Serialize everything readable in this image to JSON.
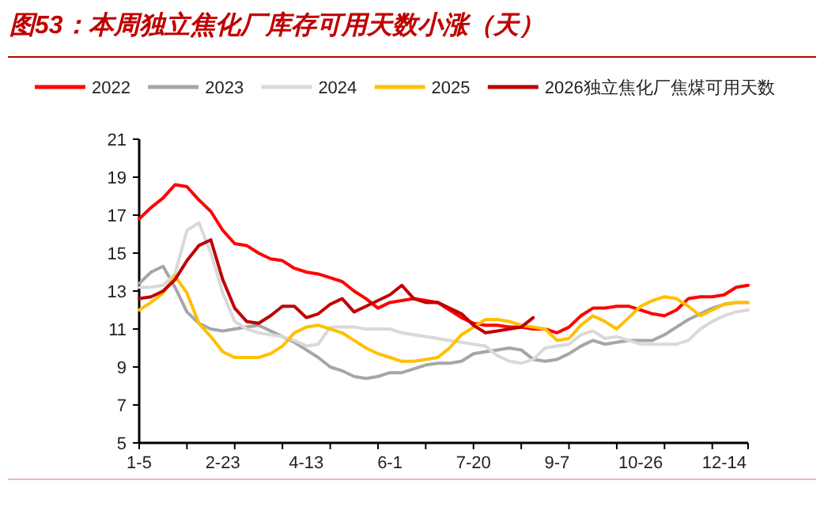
{
  "chart_data": {
    "type": "line",
    "title": "图53：本周独立焦化厂库存可用天数小涨（天）",
    "legend": "top",
    "grid": false,
    "marker": "none",
    "line_style": "solid",
    "categories": [
      "1-5",
      null,
      null,
      null,
      null,
      null,
      null,
      "2-23",
      null,
      null,
      null,
      null,
      null,
      null,
      "4-13",
      null,
      null,
      null,
      null,
      null,
      null,
      "6-1",
      null,
      null,
      null,
      null,
      null,
      null,
      "7-20",
      null,
      null,
      null,
      null,
      null,
      null,
      "9-7",
      null,
      null,
      null,
      null,
      null,
      null,
      "10-26",
      null,
      null,
      null,
      null,
      null,
      null,
      "12-14",
      null,
      null
    ],
    "ylim": [
      5,
      21
    ],
    "yticks": [
      5,
      7,
      9,
      11,
      13,
      15,
      17,
      19,
      21
    ],
    "series": [
      {
        "name": "2022",
        "color": "#ff0000",
        "values": [
          16.8,
          17.4,
          17.9,
          18.6,
          18.5,
          17.8,
          17.2,
          16.2,
          15.5,
          15.4,
          15.0,
          14.7,
          14.6,
          14.2,
          14.0,
          13.9,
          13.7,
          13.5,
          13.0,
          12.6,
          12.1,
          12.4,
          12.5,
          12.6,
          12.5,
          12.4,
          12.0,
          11.6,
          11.3,
          11.2,
          11.2,
          11.1,
          11.1,
          11.0,
          11.0,
          10.8,
          11.1,
          11.7,
          12.1,
          12.1,
          12.2,
          12.2,
          12.0,
          11.8,
          11.7,
          12.0,
          12.6,
          12.7,
          12.7,
          12.8,
          13.2,
          13.3
        ]
      },
      {
        "name": "2023",
        "color": "#a6a6a6",
        "values": [
          13.4,
          14.0,
          14.3,
          13.2,
          11.9,
          11.3,
          11.0,
          10.9,
          11.0,
          11.1,
          11.2,
          10.9,
          10.6,
          10.3,
          9.9,
          9.5,
          9.0,
          8.8,
          8.5,
          8.4,
          8.5,
          8.7,
          8.7,
          8.9,
          9.1,
          9.2,
          9.2,
          9.3,
          9.7,
          9.8,
          9.9,
          10.0,
          9.9,
          9.4,
          9.3,
          9.4,
          9.7,
          10.1,
          10.4,
          10.2,
          10.3,
          10.4,
          10.4,
          10.4,
          10.7,
          11.1,
          11.5,
          11.8,
          12.1,
          12.3,
          12.4,
          12.4
        ]
      },
      {
        "name": "2024",
        "color": "#d9d9d9",
        "values": [
          13.2,
          13.2,
          13.3,
          13.9,
          16.2,
          16.6,
          15.0,
          12.9,
          11.4,
          11.0,
          10.8,
          10.7,
          10.6,
          10.4,
          10.1,
          10.2,
          11.1,
          11.1,
          11.1,
          11.0,
          11.0,
          11.0,
          10.8,
          10.7,
          10.6,
          10.5,
          10.4,
          10.3,
          10.2,
          10.1,
          9.6,
          9.3,
          9.2,
          9.4,
          10.0,
          10.1,
          10.2,
          10.7,
          10.9,
          10.5,
          10.6,
          10.4,
          10.2,
          10.2,
          10.2,
          10.2,
          10.4,
          11.0,
          11.4,
          11.7,
          11.9,
          12.0
        ]
      },
      {
        "name": "2025",
        "color": "#ffc000",
        "values": [
          12.0,
          12.4,
          12.9,
          13.8,
          12.9,
          11.3,
          10.6,
          9.8,
          9.5,
          9.5,
          9.5,
          9.7,
          10.1,
          10.8,
          11.1,
          11.2,
          11.0,
          10.8,
          10.4,
          10.0,
          9.7,
          9.5,
          9.3,
          9.3,
          9.4,
          9.5,
          10.0,
          10.7,
          11.1,
          11.5,
          11.5,
          11.4,
          11.2,
          11.1,
          11.0,
          10.4,
          10.5,
          11.2,
          11.7,
          11.4,
          11.0,
          11.6,
          12.2,
          12.5,
          12.7,
          12.6,
          12.2,
          11.7,
          12.0,
          12.3,
          12.4,
          12.4
        ]
      },
      {
        "name": "2026独立焦化厂焦煤可用天数",
        "color": "#c00000",
        "values": [
          12.6,
          12.7,
          13.0,
          13.6,
          14.6,
          15.4,
          15.7,
          13.6,
          12.1,
          11.4,
          11.3,
          11.7,
          12.2,
          12.2,
          11.6,
          11.8,
          12.3,
          12.6,
          11.9,
          12.2,
          12.5,
          12.8,
          13.3,
          12.6,
          12.4,
          12.4,
          12.1,
          11.8,
          11.2,
          10.8,
          10.9,
          11.0,
          11.1,
          11.6,
          null,
          null,
          null,
          null,
          null,
          null,
          null,
          null,
          null,
          null,
          null,
          null,
          null,
          null,
          null,
          null,
          null,
          null
        ]
      }
    ]
  }
}
